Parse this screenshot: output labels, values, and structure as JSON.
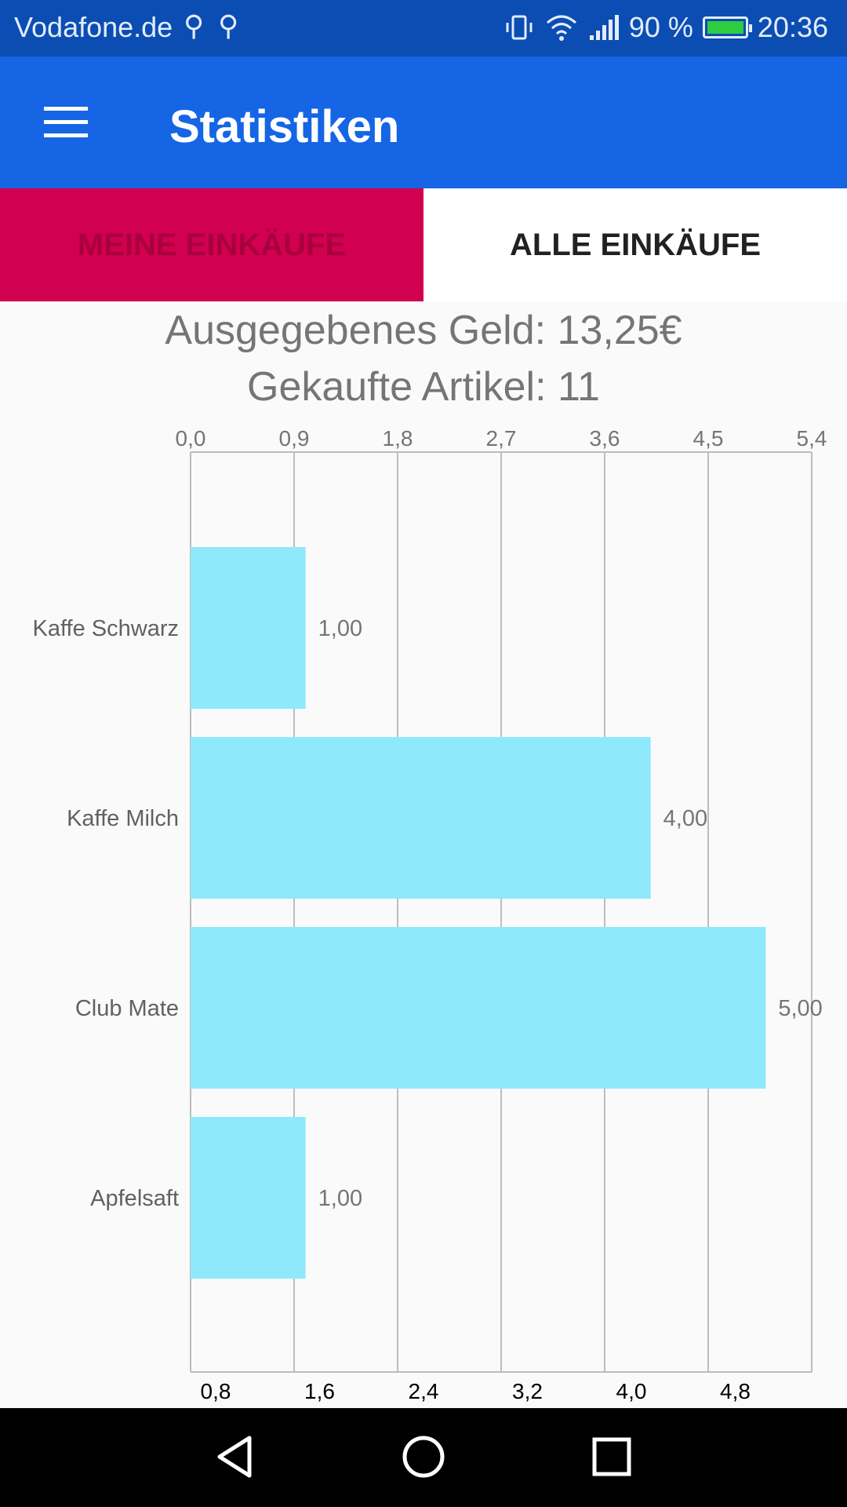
{
  "status_bar": {
    "carrier": "Vodafone.de",
    "battery": "90 %",
    "time": "20:36"
  },
  "app_bar": {
    "title": "Statistiken"
  },
  "tabs": [
    {
      "label": "MEINE EINKÄUFE",
      "selected": false
    },
    {
      "label": "ALLE EINKÄUFE",
      "selected": true
    }
  ],
  "summary": {
    "money": "Ausgegebenes Geld: 13,25€",
    "items": "Gekaufte Artikel: 11"
  },
  "chart_data": {
    "type": "bar",
    "orientation": "horizontal",
    "categories": [
      "Kaffe Schwarz",
      "Kaffe Milch",
      "Club Mate",
      "Apfelsaft"
    ],
    "values": [
      1.0,
      4.0,
      5.0,
      1.0
    ],
    "value_labels": [
      "1,00",
      "4,00",
      "5,00",
      "1,00"
    ],
    "top_ticks": [
      "0,0",
      "0,9",
      "1,8",
      "2,7",
      "3,6",
      "4,5",
      "5,4"
    ],
    "bottom_ticks": [
      "0,8",
      "1,6",
      "2,4",
      "3,2",
      "4,0",
      "4,8"
    ],
    "xlim": [
      0,
      5.4
    ],
    "grid": true,
    "bar_color": "#8EE9FC"
  },
  "nav_bar": {
    "back": "back-icon",
    "home": "home-icon",
    "recents": "recents-icon"
  }
}
